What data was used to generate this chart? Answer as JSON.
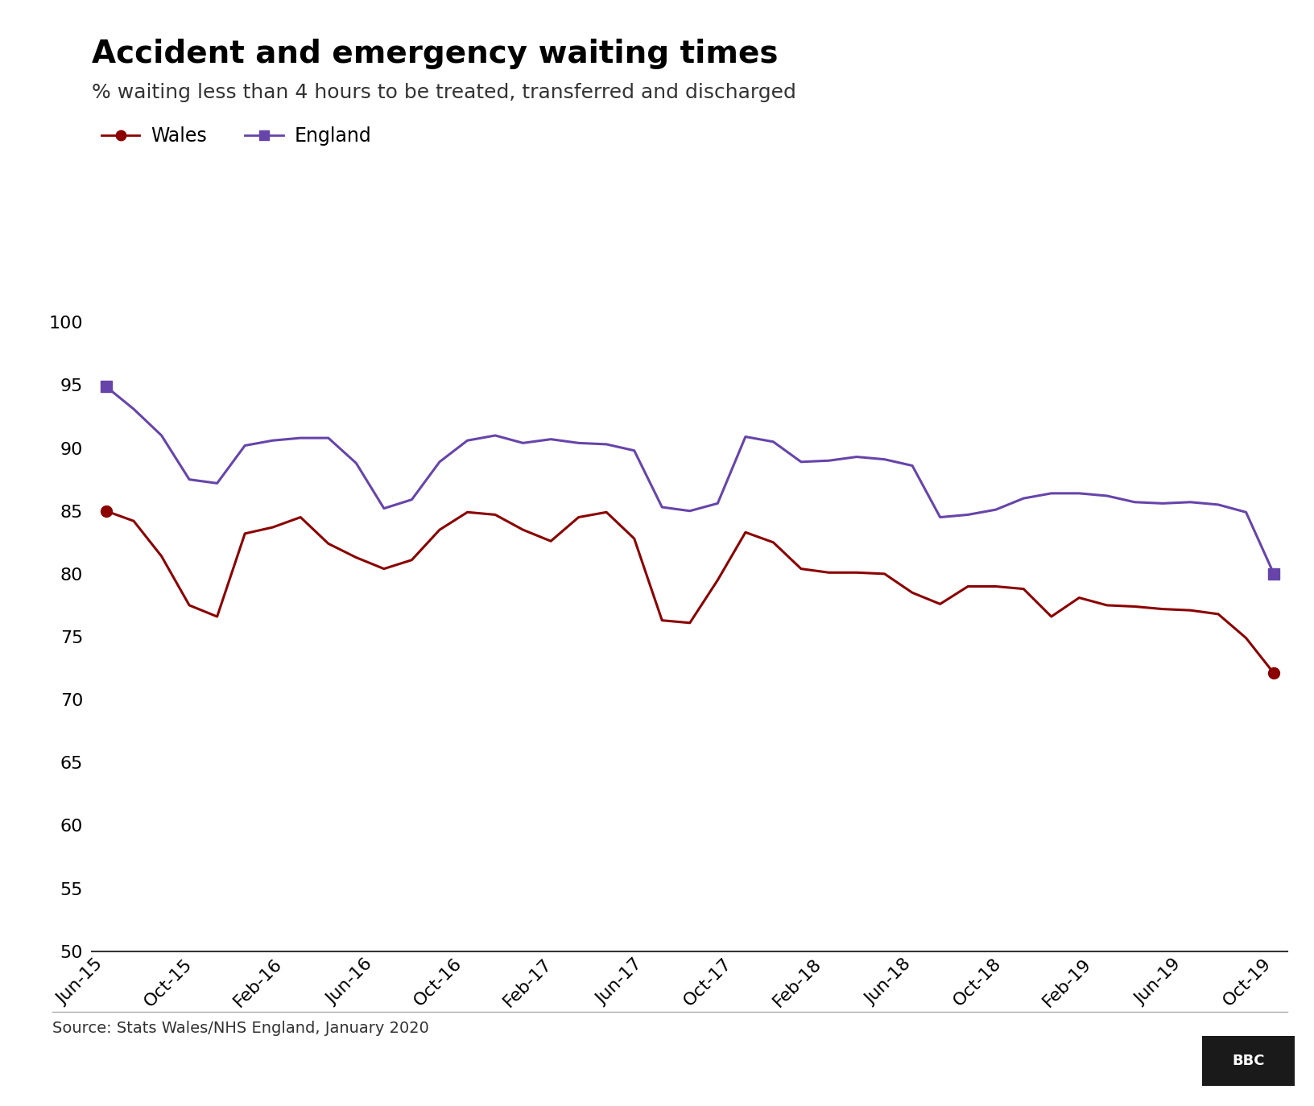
{
  "title": "Accident and emergency waiting times",
  "subtitle": "% waiting less than 4 hours to be treated, transferred and discharged",
  "source": "Source: Stats Wales/NHS England, January 2020",
  "wales_color": "#8B0000",
  "england_color": "#6644AA",
  "background_color": "#ffffff",
  "ylim": [
    50,
    101
  ],
  "yticks": [
    50,
    55,
    60,
    65,
    70,
    75,
    80,
    85,
    90,
    95,
    100
  ],
  "x_labels": [
    "Jun-15",
    "Oct-15",
    "Feb-16",
    "Jun-16",
    "Oct-16",
    "Feb-17",
    "Jun-17",
    "Oct-17",
    "Feb-18",
    "Jun-18",
    "Oct-18",
    "Feb-19",
    "Jun-19",
    "Oct-19"
  ],
  "wales_data": [
    85.0,
    84.2,
    81.4,
    77.5,
    76.6,
    83.2,
    83.7,
    84.5,
    82.4,
    81.3,
    80.4,
    81.1,
    83.5,
    84.9,
    84.7,
    83.5,
    82.6,
    84.5,
    84.9,
    82.8,
    76.3,
    76.1,
    79.5,
    83.3,
    82.5,
    80.4,
    80.1,
    80.1,
    80.0,
    78.5,
    77.6,
    79.0,
    79.0,
    78.8,
    76.6,
    78.1,
    77.5,
    77.4,
    77.2,
    77.1,
    76.8,
    74.9,
    72.1
  ],
  "england_data": [
    94.9,
    93.1,
    91.0,
    87.5,
    87.2,
    90.2,
    90.6,
    90.8,
    90.8,
    88.8,
    85.2,
    85.9,
    88.9,
    90.6,
    91.0,
    90.4,
    90.7,
    90.4,
    90.3,
    89.8,
    85.3,
    85.0,
    85.6,
    90.9,
    90.5,
    88.9,
    89.0,
    89.3,
    89.1,
    88.6,
    84.5,
    84.7,
    85.1,
    86.0,
    86.4,
    86.4,
    86.2,
    85.7,
    85.6,
    85.7,
    85.5,
    84.9,
    80.0
  ],
  "title_fontsize": 28,
  "subtitle_fontsize": 18,
  "legend_fontsize": 17,
  "tick_fontsize": 16,
  "source_fontsize": 14
}
